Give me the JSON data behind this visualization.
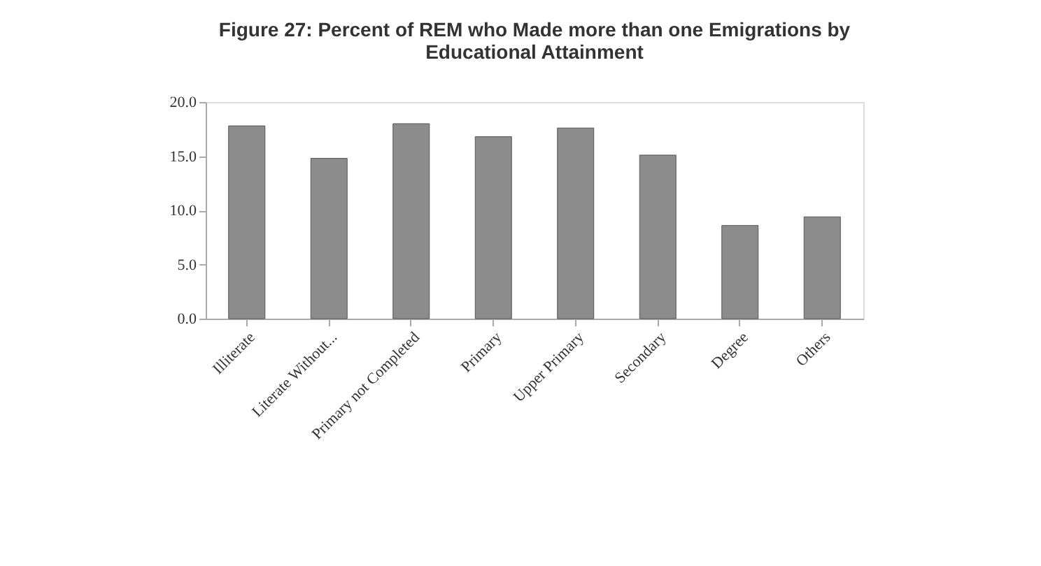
{
  "chart_data": {
    "type": "bar",
    "title": [
      "Figure 27: Percent of REM who Made more than one Emigrations by",
      "Educational Attainment"
    ],
    "categories": [
      "Illiterate",
      "Literate Without...",
      "Primary not Completed",
      "Primary",
      "Upper Primary",
      "Secondary",
      "Degree",
      "Others"
    ],
    "values": [
      17.8,
      14.8,
      18.0,
      16.8,
      17.6,
      15.1,
      8.6,
      9.4
    ],
    "color": "#8c8c8c",
    "ylim": [
      0,
      20
    ],
    "yticks": [
      {
        "value": 0,
        "label": "0.0"
      },
      {
        "value": 5,
        "label": "5.0"
      },
      {
        "value": 10,
        "label": "10.0"
      },
      {
        "value": 15,
        "label": "15.0"
      },
      {
        "value": 20,
        "label": "20.0"
      }
    ],
    "grid": false
  }
}
